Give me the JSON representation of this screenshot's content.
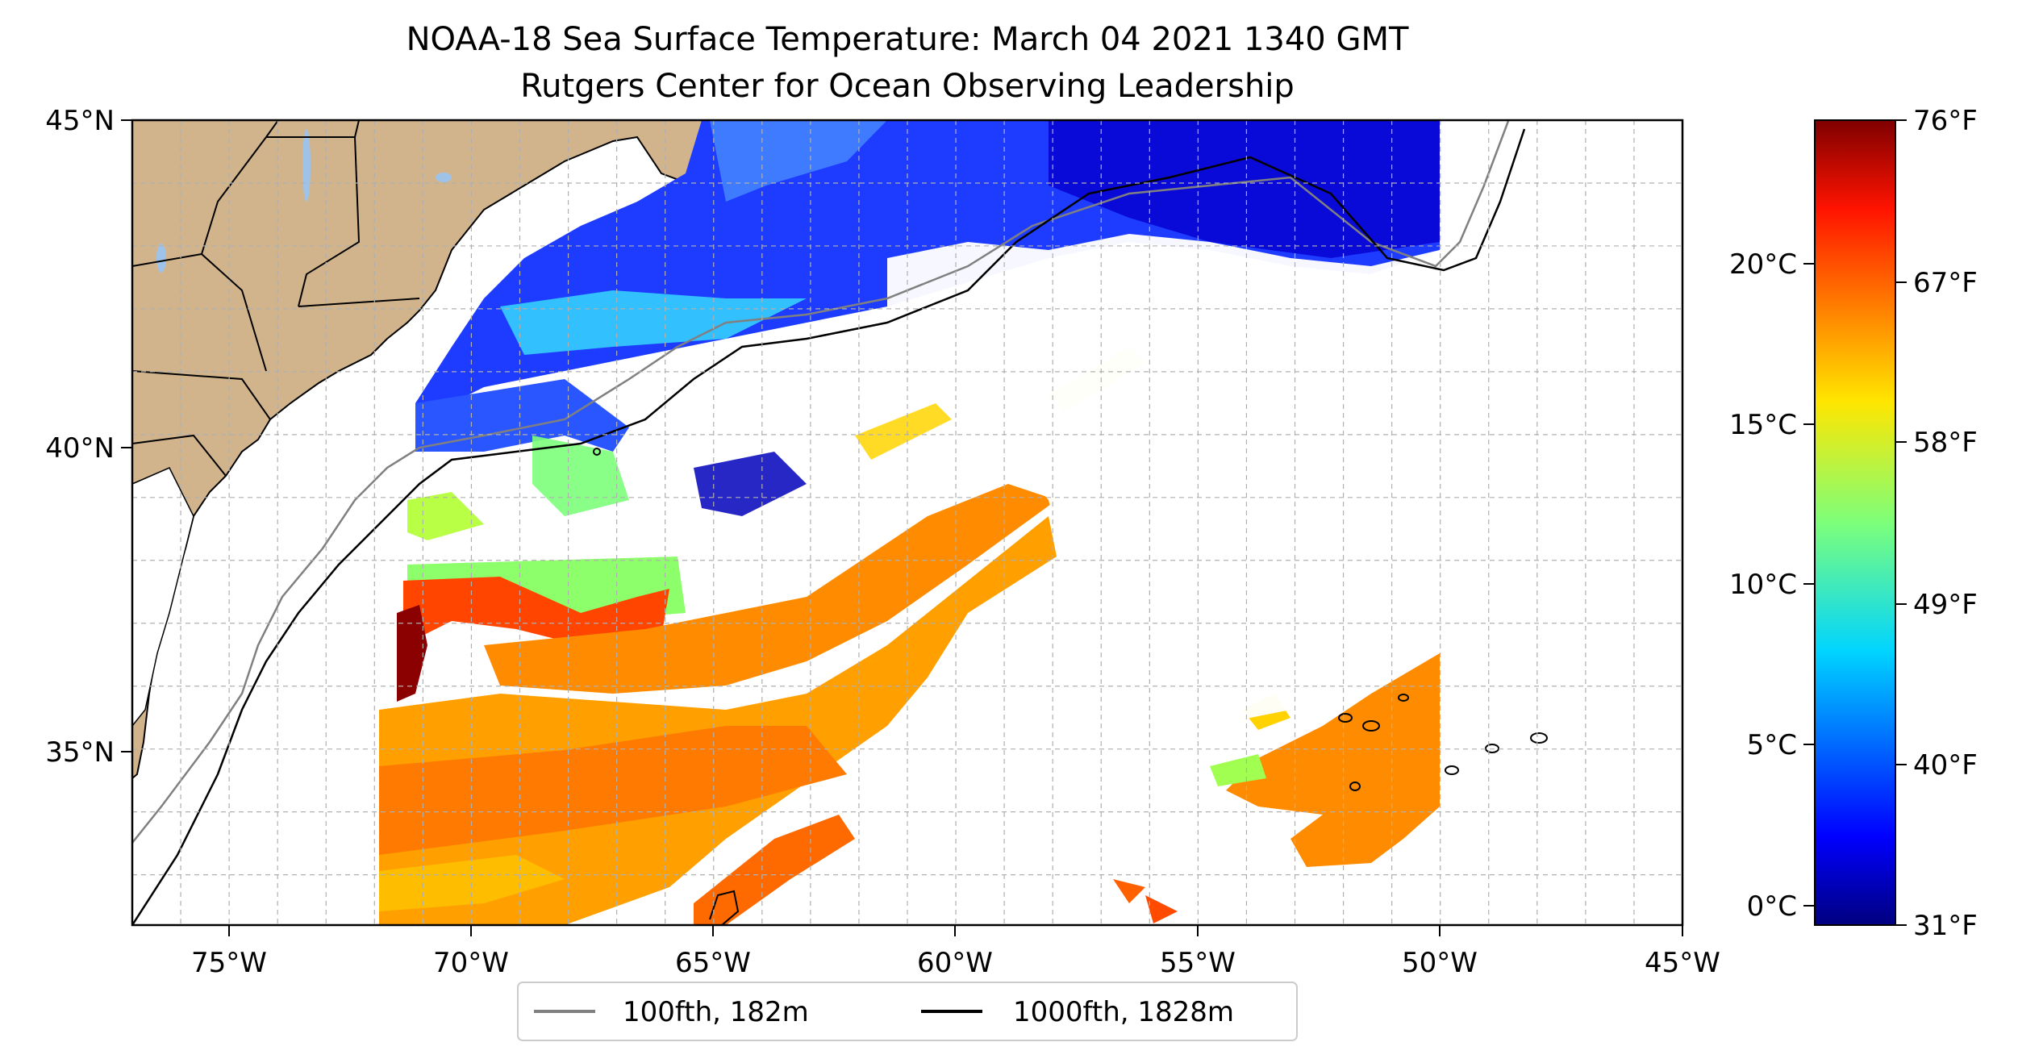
{
  "title": {
    "line1": "NOAA-18 Sea Surface Temperature: March 04 2021 1340 GMT",
    "line2": "Rutgers Center for Ocean Observing Leadership"
  },
  "map": {
    "lon_range": [
      -77,
      -45
    ],
    "lat_range": [
      32.2,
      45
    ],
    "lon_ticks": [
      {
        "value": -75,
        "label": "75°W"
      },
      {
        "value": -70,
        "label": "70°W"
      },
      {
        "value": -65,
        "label": "65°W"
      },
      {
        "value": -60,
        "label": "60°W"
      },
      {
        "value": -55,
        "label": "55°W"
      },
      {
        "value": -50,
        "label": "50°W"
      },
      {
        "value": -45,
        "label": "45°W"
      }
    ],
    "lat_ticks": [
      {
        "value": 45,
        "label": "45°N"
      },
      {
        "value": 40,
        "label": "40°N"
      },
      {
        "value": 35,
        "label": "35°N"
      }
    ],
    "grid": true,
    "colors": {
      "land": "#d2b48c",
      "lakes": "#9fc3e8",
      "isobath_100fth": "#808080",
      "isobath_1000fth": "#000000",
      "grid": "#b0b0b0"
    }
  },
  "legend": {
    "placement": "bottom-center",
    "items": [
      {
        "label": "100fth, 182m",
        "color": "#808080"
      },
      {
        "label": "1000fth, 1828m",
        "color": "#000000"
      }
    ]
  },
  "colorbar": {
    "colormap": "jet",
    "range_f": [
      31,
      76
    ],
    "celsius_ticks": [
      {
        "value": 0,
        "label": "0°C"
      },
      {
        "value": 5,
        "label": "5°C"
      },
      {
        "value": 10,
        "label": "10°C"
      },
      {
        "value": 15,
        "label": "15°C"
      },
      {
        "value": 20,
        "label": "20°C"
      }
    ],
    "fahrenheit_ticks": [
      {
        "value": 31,
        "label": "31°F"
      },
      {
        "value": 40,
        "label": "40°F"
      },
      {
        "value": 49,
        "label": "49°F"
      },
      {
        "value": 58,
        "label": "58°F"
      },
      {
        "value": 67,
        "label": "67°F"
      },
      {
        "value": 76,
        "label": "76°F"
      }
    ]
  }
}
